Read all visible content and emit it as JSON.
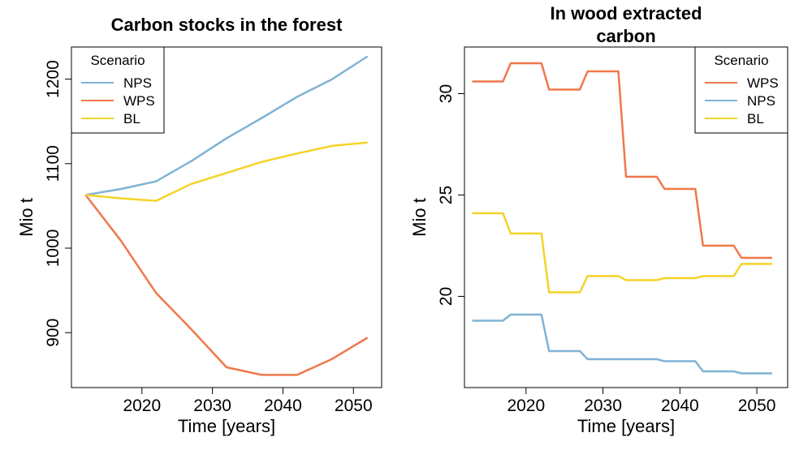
{
  "colors": {
    "NPS": "#7fb3d5",
    "WPS": "#f0784a",
    "BL": "#f5d327"
  },
  "chart_data": [
    {
      "type": "line",
      "title": "Carbon stocks in the forest",
      "xlabel": "Time [years]",
      "ylabel": "Mio t",
      "xlim": [
        2010,
        2054
      ],
      "ylim": [
        835,
        1238
      ],
      "xticks": [
        2020,
        2030,
        2040,
        2050
      ],
      "yticks": [
        900,
        1000,
        1100,
        1200
      ],
      "grid": false,
      "legend": {
        "title": "Scenario",
        "position": "top-left",
        "order": [
          "NPS",
          "WPS",
          "BL"
        ]
      },
      "x": [
        2012,
        2017,
        2022,
        2027,
        2032,
        2037,
        2042,
        2047,
        2052
      ],
      "series": [
        {
          "name": "NPS",
          "color": "#7fb3d5",
          "values": [
            1063,
            1070,
            1079,
            1103,
            1130,
            1154,
            1179,
            1200,
            1227
          ]
        },
        {
          "name": "WPS",
          "color": "#f0784a",
          "values": [
            1063,
            1009,
            947,
            904,
            859,
            850,
            850,
            869,
            894
          ]
        },
        {
          "name": "BL",
          "color": "#f5d327",
          "values": [
            1063,
            1059,
            1056,
            1076,
            1089,
            1102,
            1112,
            1121,
            1125
          ]
        }
      ]
    },
    {
      "type": "line",
      "title": "In wood extracted carbon",
      "title_lines": [
        "In wood extracted",
        "carbon"
      ],
      "xlabel": "Time [years]",
      "ylabel": "Mio t",
      "xlim": [
        2012,
        2054
      ],
      "ylim": [
        15.5,
        32.3
      ],
      "xticks": [
        2020,
        2030,
        2040,
        2050
      ],
      "yticks": [
        20,
        25,
        30
      ],
      "grid": false,
      "legend": {
        "title": "Scenario",
        "position": "top-right",
        "order": [
          "WPS",
          "NPS",
          "BL"
        ]
      },
      "series": [
        {
          "name": "WPS",
          "color": "#f0784a",
          "x": [
            2013,
            2017,
            2018,
            2022,
            2023,
            2027,
            2028,
            2032,
            2033,
            2037,
            2038,
            2042,
            2043,
            2047,
            2048,
            2052
          ],
          "values": [
            30.6,
            30.6,
            31.5,
            31.5,
            30.2,
            30.2,
            31.1,
            31.1,
            25.9,
            25.9,
            25.3,
            25.3,
            22.5,
            22.5,
            21.9,
            21.9
          ]
        },
        {
          "name": "NPS",
          "color": "#7fb3d5",
          "x": [
            2013,
            2017,
            2018,
            2022,
            2023,
            2027,
            2028,
            2032,
            2033,
            2037,
            2038,
            2042,
            2043,
            2047,
            2048,
            2052
          ],
          "values": [
            18.8,
            18.8,
            19.1,
            19.1,
            17.3,
            17.3,
            16.9,
            16.9,
            16.9,
            16.9,
            16.8,
            16.8,
            16.3,
            16.3,
            16.2,
            16.2
          ]
        },
        {
          "name": "BL",
          "color": "#f5d327",
          "x": [
            2013,
            2017,
            2018,
            2022,
            2023,
            2027,
            2028,
            2032,
            2033,
            2037,
            2038,
            2042,
            2043,
            2047,
            2048,
            2052
          ],
          "values": [
            24.1,
            24.1,
            23.1,
            23.1,
            20.2,
            20.2,
            21.0,
            21.0,
            20.8,
            20.8,
            20.9,
            20.9,
            21.0,
            21.0,
            21.6,
            21.6
          ]
        }
      ]
    }
  ]
}
